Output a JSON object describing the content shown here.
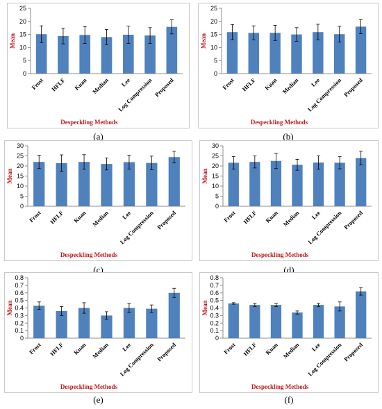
{
  "colors": {
    "bar": "#4f81bd",
    "axis_title": "#c0181d"
  },
  "chart_data": [
    {
      "type": "bar",
      "caption": "(a)",
      "xlabel": "Despeckling Methods",
      "ylabel": "Mean",
      "categories": [
        "Frost",
        "HFLF",
        "Kuan",
        "Median",
        "Lee",
        "Log Compression",
        "Proposed"
      ],
      "values": [
        15.1,
        14.4,
        14.8,
        14.0,
        14.9,
        14.6,
        17.9
      ],
      "errors": [
        3.2,
        3.0,
        3.2,
        2.9,
        3.3,
        3.0,
        2.7
      ],
      "ylim": [
        0,
        25
      ],
      "yticks": [
        "0",
        "5",
        "10",
        "15",
        "20",
        "25"
      ],
      "ytick_values": [
        0,
        5,
        10,
        15,
        20,
        25
      ],
      "grid": false,
      "legend": "none"
    },
    {
      "type": "bar",
      "caption": "(b)",
      "xlabel": "Despeckling Methods",
      "ylabel": "Mean",
      "categories": [
        "Frost",
        "HFLF",
        "Kuan",
        "Median",
        "Lee",
        "Log Compression",
        "Proposed"
      ],
      "values": [
        15.9,
        15.6,
        15.6,
        15.0,
        15.9,
        15.1,
        18.0
      ],
      "errors": [
        2.9,
        2.7,
        2.9,
        2.6,
        3.0,
        3.0,
        2.7
      ],
      "ylim": [
        0,
        25
      ],
      "yticks": [
        "0",
        "5",
        "10",
        "15",
        "20",
        "25"
      ],
      "ytick_values": [
        0,
        5,
        10,
        15,
        20,
        25
      ],
      "grid": false,
      "legend": "none"
    },
    {
      "type": "bar",
      "caption": "(c)",
      "xlabel": "Despeckling Methods",
      "ylabel": "Mean",
      "categories": [
        "Frost",
        "HFLF",
        "Kuan",
        "Median",
        "Lee",
        "Log Compression",
        "Proposed"
      ],
      "values": [
        22.0,
        21.4,
        22.0,
        21.0,
        21.9,
        21.5,
        24.4
      ],
      "errors": [
        3.3,
        4.1,
        3.6,
        3.0,
        3.4,
        3.4,
        2.9
      ],
      "ylim": [
        0,
        30
      ],
      "yticks": [
        "0",
        "5",
        "10",
        "15",
        "20",
        "25",
        "30"
      ],
      "ytick_values": [
        0,
        5,
        10,
        15,
        20,
        25,
        30
      ],
      "grid": false,
      "legend": "none"
    },
    {
      "type": "bar",
      "caption": "(d)",
      "xlabel": "Despeckling Methods",
      "ylabel": "Mean",
      "categories": [
        "Frost",
        "HFLF",
        "Kuan",
        "Median",
        "Lee",
        "Log Compression",
        "Proposed"
      ],
      "values": [
        21.6,
        22.0,
        22.5,
        20.6,
        21.7,
        21.6,
        23.9
      ],
      "errors": [
        3.1,
        3.0,
        3.8,
        2.7,
        3.3,
        3.0,
        3.4
      ],
      "ylim": [
        0,
        30
      ],
      "yticks": [
        "0",
        "5",
        "10",
        "15",
        "20",
        "25",
        "30"
      ],
      "ytick_values": [
        0,
        5,
        10,
        15,
        20,
        25,
        30
      ],
      "grid": false,
      "legend": "none"
    },
    {
      "type": "bar",
      "caption": "(e)",
      "xlabel": "Despeckling Methods",
      "ylabel": "Mean",
      "categories": [
        "Frost",
        "HFLF",
        "Kuan",
        "Median",
        "Lee",
        "Log Compression",
        "Proposed"
      ],
      "values": [
        0.43,
        0.36,
        0.4,
        0.3,
        0.4,
        0.39,
        0.6
      ],
      "errors": [
        0.05,
        0.06,
        0.07,
        0.05,
        0.06,
        0.05,
        0.06
      ],
      "ylim": [
        0,
        0.8
      ],
      "yticks": [
        "0",
        "0.1",
        "0.2",
        "0.3",
        "0.4",
        "0.5",
        "0.6",
        "0.7",
        "0.8"
      ],
      "ytick_values": [
        0,
        0.1,
        0.2,
        0.3,
        0.4,
        0.5,
        0.6,
        0.7,
        0.8
      ],
      "grid": false,
      "legend": "none"
    },
    {
      "type": "bar",
      "caption": "(f)",
      "xlabel": "Despeckling Methods",
      "ylabel": "Mean",
      "categories": [
        "Frost",
        "HFLF",
        "Kuan",
        "Median",
        "Lee",
        "Log Compression",
        "Proposed"
      ],
      "values": [
        0.46,
        0.44,
        0.44,
        0.34,
        0.44,
        0.42,
        0.62
      ],
      "errors": [
        0.01,
        0.02,
        0.02,
        0.02,
        0.02,
        0.06,
        0.05
      ],
      "ylim": [
        0,
        0.8
      ],
      "yticks": [
        "0",
        "0.1",
        "0.2",
        "0.3",
        "0.4",
        "0.5",
        "0.6",
        "0.7",
        "0.8"
      ],
      "ytick_values": [
        0,
        0.1,
        0.2,
        0.3,
        0.4,
        0.5,
        0.6,
        0.7,
        0.8
      ],
      "grid": false,
      "legend": "none"
    }
  ]
}
